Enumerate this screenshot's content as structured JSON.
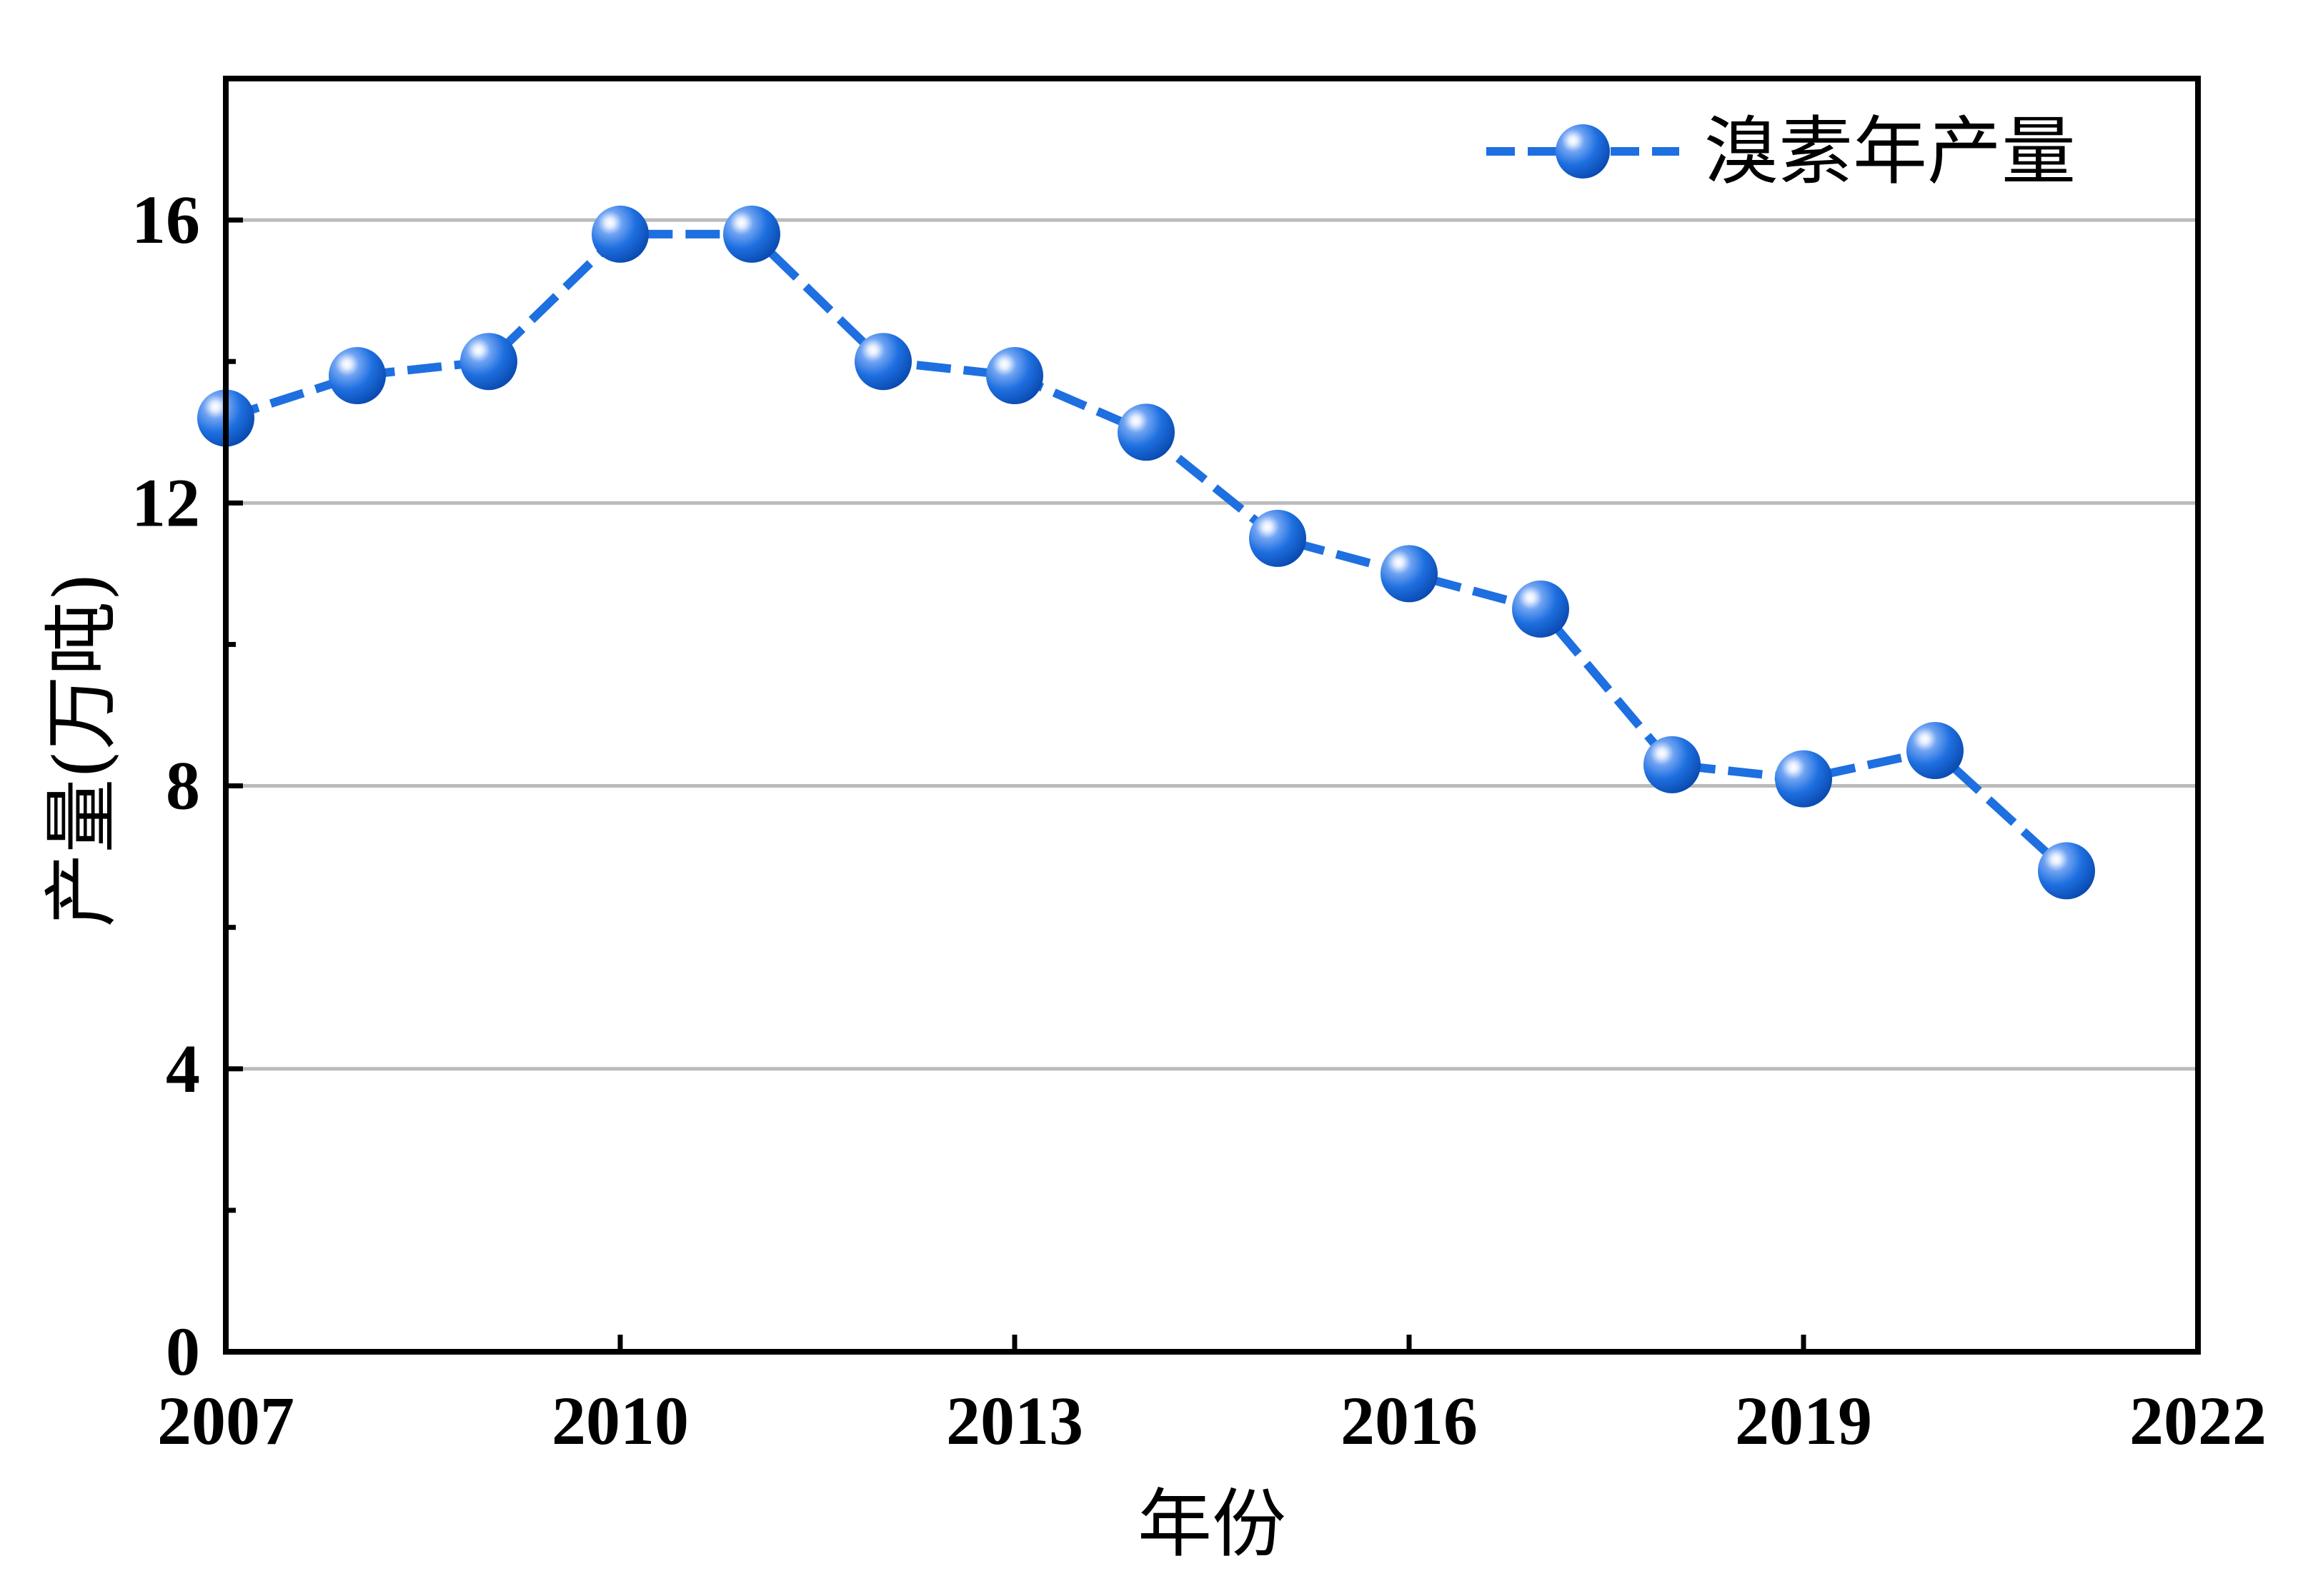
{
  "colors": {
    "series": "#1E6FE0",
    "grid": "#BBBBBB",
    "axis": "#000000"
  },
  "chart_data": {
    "type": "line",
    "title": "",
    "xlabel": "年份",
    "ylabel": "产量(万吨)",
    "xlim": [
      2007,
      2022
    ],
    "ylim": [
      0,
      18
    ],
    "xticks": [
      "2007",
      "2010",
      "2013",
      "2016",
      "2019",
      "2022"
    ],
    "yticks": [
      "0",
      "4",
      "8",
      "12",
      "16"
    ],
    "grid": "horizontal",
    "legend_position": "top-right",
    "series": [
      {
        "name": "溴素年产量",
        "marker": "circle",
        "x": [
          2007,
          2008,
          2009,
          2010,
          2011,
          2012,
          2013,
          2014,
          2015,
          2016,
          2017,
          2018,
          2019,
          2020,
          2021
        ],
        "y": [
          13.2,
          13.8,
          14.0,
          15.8,
          15.8,
          14.0,
          13.8,
          13.0,
          11.5,
          11.0,
          10.5,
          8.3,
          8.1,
          8.5,
          6.8
        ]
      }
    ]
  }
}
